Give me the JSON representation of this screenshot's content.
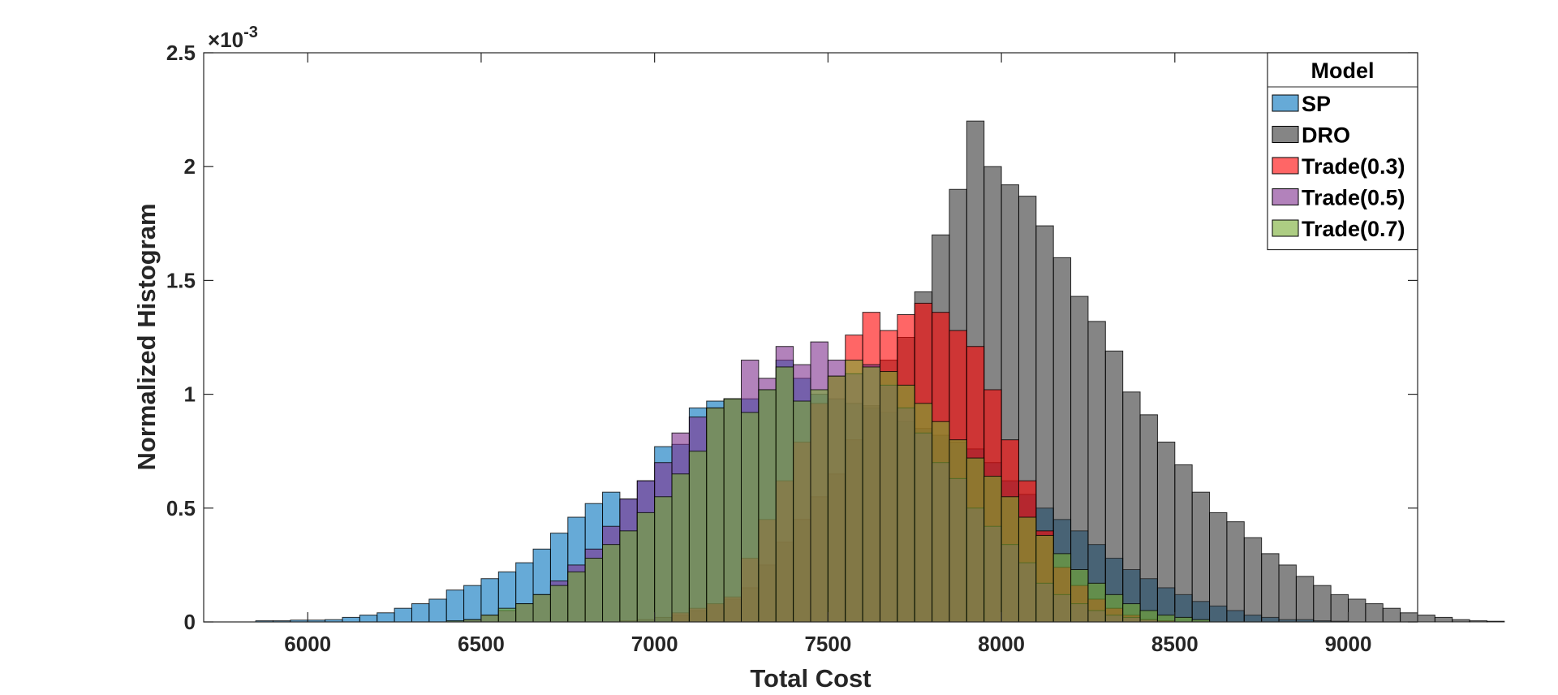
{
  "chart_data": {
    "type": "bar",
    "subtype": "overlapping-histogram",
    "xlabel": "Total Cost",
    "ylabel": "Normalized Histogram",
    "y_exponent_label": "×10",
    "y_exponent_power": "-3",
    "xlim": [
      5700,
      9200
    ],
    "ylim": [
      0,
      0.0025
    ],
    "xticks": [
      6000,
      6500,
      7000,
      7500,
      8000,
      8500,
      9000
    ],
    "xtick_labels": [
      "6000",
      "6500",
      "7000",
      "7500",
      "8000",
      "8500",
      "9000"
    ],
    "yticks": [
      0,
      0.0005,
      0.001,
      0.0015,
      0.002,
      0.0025
    ],
    "ytick_labels": [
      "0",
      "0.5",
      "1",
      "1.5",
      "2",
      "2.5"
    ],
    "grid": false,
    "legend": {
      "title": "Model",
      "placement": "top-right"
    },
    "bin_width": 50,
    "series": [
      {
        "name": "SP",
        "color": "#0072BD",
        "bin_start": 5850,
        "values": [
          5e-06,
          5e-06,
          8e-06,
          8e-06,
          1e-05,
          2e-05,
          3e-05,
          4e-05,
          6e-05,
          8e-05,
          0.0001,
          0.00014,
          0.00016,
          0.00019,
          0.00022,
          0.00026,
          0.00032,
          0.00039,
          0.00046,
          0.00052,
          0.00057,
          0.00054,
          0.00062,
          0.00077,
          0.00078,
          0.00094,
          0.00097,
          0.00098,
          0.00098,
          0.00102,
          0.00115,
          0.00107,
          0.001,
          0.00098,
          0.00096,
          0.00094,
          0.00092,
          0.00088,
          0.00085,
          0.00082,
          0.00079,
          0.00076,
          0.0007,
          0.00062,
          0.00056,
          0.0005,
          0.00045,
          0.0004,
          0.00034,
          0.00028,
          0.00023,
          0.00019,
          0.00015,
          0.00012,
          9e-05,
          7e-05,
          5e-05,
          3e-05,
          2e-05,
          1e-05,
          1e-05,
          5e-06,
          3e-06
        ]
      },
      {
        "name": "DRO",
        "color": "#333333",
        "bin_start": 6900,
        "values": [
          5e-06,
          1e-05,
          2e-05,
          3e-05,
          5e-05,
          8e-05,
          0.0001,
          0.00015,
          0.00025,
          0.00035,
          0.00045,
          0.00055,
          0.00065,
          0.0008,
          0.00095,
          0.00115,
          0.00125,
          0.00145,
          0.0017,
          0.0019,
          0.0022,
          0.002,
          0.00192,
          0.00187,
          0.00174,
          0.0016,
          0.00143,
          0.00132,
          0.00119,
          0.00101,
          0.00091,
          0.00079,
          0.00069,
          0.00057,
          0.00048,
          0.00044,
          0.00037,
          0.0003,
          0.00025,
          0.0002,
          0.00016,
          0.00012,
          0.0001,
          8e-05,
          6e-05,
          4e-05,
          3e-05,
          2e-05,
          1e-05,
          5e-06,
          3e-06
        ]
      },
      {
        "name": "Trade(0.3)",
        "color": "#FF0000",
        "bin_start": 7050,
        "values": [
          4e-05,
          6e-05,
          8e-05,
          0.00011,
          0.00028,
          0.00045,
          0.00062,
          0.00079,
          0.00096,
          0.00108,
          0.00126,
          0.00136,
          0.00128,
          0.00135,
          0.0014,
          0.00136,
          0.00128,
          0.00121,
          0.00102,
          0.0008,
          0.00062,
          0.0004,
          0.00024,
          0.00016,
          0.0001,
          6e-05,
          3e-05,
          1e-05,
          5e-06
        ]
      },
      {
        "name": "Trade(0.5)",
        "color": "#7E2F8E",
        "bin_start": 6450,
        "values": [
          1e-05,
          3e-05,
          5e-05,
          8e-05,
          0.00012,
          0.00018,
          0.00025,
          0.00032,
          0.00042,
          0.00054,
          0.00062,
          0.0007,
          0.00083,
          0.0009,
          0.00094,
          0.00098,
          0.00115,
          0.00107,
          0.00121,
          0.00113,
          0.00123,
          0.00115,
          0.00109,
          0.00113,
          0.00104,
          0.00094,
          0.00083,
          0.0007,
          0.00063,
          0.0005,
          0.00042,
          0.00034,
          0.00026,
          0.00017,
          0.00012,
          8e-05,
          5e-05,
          3e-05,
          2e-05,
          1e-05
        ]
      },
      {
        "name": "Trade(0.7)",
        "color": "#77AC30",
        "bin_start": 6400,
        "values": [
          5e-06,
          1e-05,
          3e-05,
          6e-05,
          8e-05,
          0.00012,
          0.00016,
          0.00022,
          0.00028,
          0.00034,
          0.0004,
          0.00048,
          0.00055,
          0.00065,
          0.00075,
          0.00094,
          0.00098,
          0.00092,
          0.00102,
          0.00112,
          0.00097,
          0.00102,
          0.00108,
          0.00115,
          0.00112,
          0.0011,
          0.00104,
          0.00096,
          0.00088,
          0.0008,
          0.00072,
          0.00064,
          0.00055,
          0.00046,
          0.00038,
          0.0003,
          0.00023,
          0.00017,
          0.00012,
          8e-05,
          5e-05,
          3e-05,
          2e-05,
          1e-05
        ]
      }
    ]
  }
}
